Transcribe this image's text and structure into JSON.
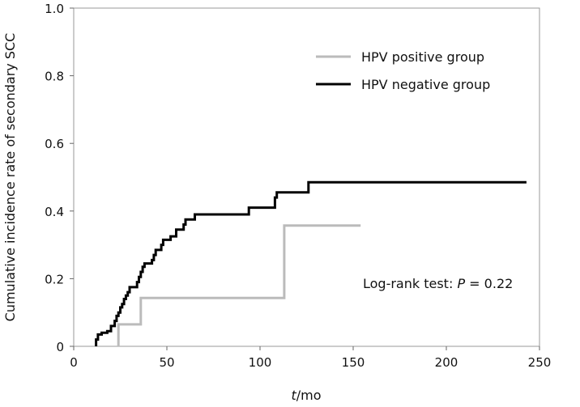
{
  "chart_data": {
    "type": "line",
    "title": "",
    "xlabel_italic": "t",
    "xlabel_rest": "/mo",
    "ylabel": "Cumulative incidence rate of secondary SCC",
    "xlim": [
      0,
      250
    ],
    "ylim": [
      0,
      1.0
    ],
    "xticks": [
      "0",
      "50",
      "100",
      "150",
      "200",
      "250"
    ],
    "yticks": [
      "0",
      "0.2",
      "0.4",
      "0.6",
      "0.8",
      "1.0"
    ],
    "legend_position": "top-right",
    "annotation_prefix": "Log-rank test: ",
    "annotation_p": "P",
    "annotation_suffix": " = 0.22",
    "series": [
      {
        "name": "HPV positive group",
        "color": "#bbbbbb",
        "steps": [
          [
            0,
            0
          ],
          [
            24,
            0.065
          ],
          [
            36,
            0.143
          ],
          [
            113,
            0.357
          ]
        ],
        "start": 24,
        "end": 154
      },
      {
        "name": "HPV negative group",
        "color": "#000000",
        "steps": [
          [
            12,
            0.02
          ],
          [
            13,
            0.035
          ],
          [
            15,
            0.04
          ],
          [
            18,
            0.045
          ],
          [
            20,
            0.06
          ],
          [
            22,
            0.075
          ],
          [
            23,
            0.09
          ],
          [
            24,
            0.1
          ],
          [
            25,
            0.115
          ],
          [
            26,
            0.125
          ],
          [
            27,
            0.14
          ],
          [
            28,
            0.15
          ],
          [
            29,
            0.16
          ],
          [
            30,
            0.175
          ],
          [
            34,
            0.19
          ],
          [
            35,
            0.205
          ],
          [
            36,
            0.22
          ],
          [
            37,
            0.235
          ],
          [
            38,
            0.245
          ],
          [
            42,
            0.255
          ],
          [
            43,
            0.27
          ],
          [
            44,
            0.285
          ],
          [
            47,
            0.3
          ],
          [
            48,
            0.315
          ],
          [
            52,
            0.325
          ],
          [
            55,
            0.345
          ],
          [
            59,
            0.36
          ],
          [
            60,
            0.375
          ],
          [
            65,
            0.39
          ],
          [
            94,
            0.41
          ],
          [
            108,
            0.44
          ],
          [
            109,
            0.455
          ],
          [
            126,
            0.485
          ]
        ],
        "start": 12,
        "end": 243
      }
    ]
  }
}
